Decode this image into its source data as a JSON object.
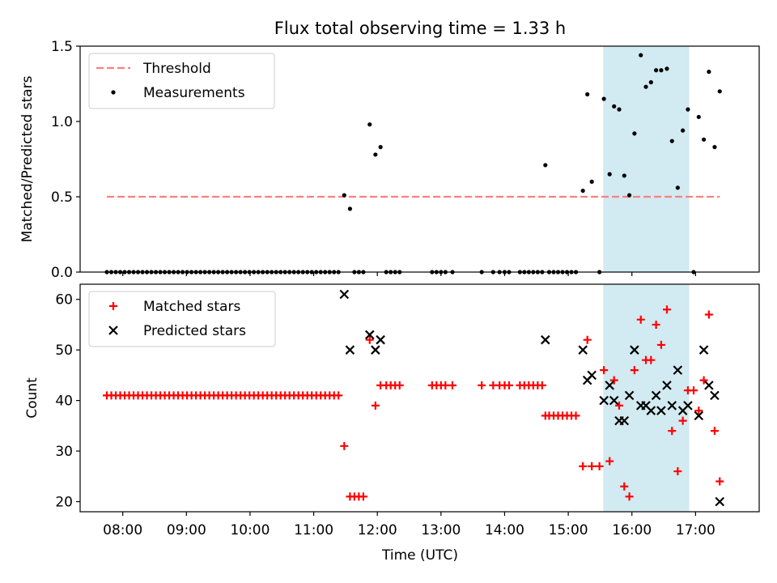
{
  "title": "Flux total observing time = 1.33 h",
  "chart_data": [
    {
      "type": "scatter",
      "ylabel": "Matched/Predicted stars",
      "ylim": [
        0,
        1.5
      ],
      "yticks": [
        "0.0",
        "0.5",
        "1.0",
        "1.5"
      ],
      "xlim": [
        7.33,
        18.0
      ],
      "grid": false,
      "legend": "top-left",
      "highlight_span": [
        15.55,
        16.9
      ],
      "threshold": {
        "name": "Threshold",
        "value": 0.5,
        "x": [
          7.75,
          17.38
        ],
        "color": "#ff7f7f"
      },
      "series": [
        {
          "name": "Measurements",
          "color": "#000000",
          "marker": "dot",
          "points": [
            [
              7.75,
              0
            ],
            [
              7.82,
              0
            ],
            [
              7.89,
              0
            ],
            [
              7.96,
              0
            ],
            [
              8.03,
              0
            ],
            [
              8.1,
              0
            ],
            [
              8.17,
              0
            ],
            [
              8.24,
              0
            ],
            [
              8.31,
              0
            ],
            [
              8.38,
              0
            ],
            [
              8.45,
              0
            ],
            [
              8.52,
              0
            ],
            [
              8.59,
              0
            ],
            [
              8.66,
              0
            ],
            [
              8.73,
              0
            ],
            [
              8.8,
              0
            ],
            [
              8.87,
              0
            ],
            [
              8.94,
              0
            ],
            [
              9.01,
              0
            ],
            [
              9.08,
              0
            ],
            [
              9.15,
              0
            ],
            [
              9.22,
              0
            ],
            [
              9.29,
              0
            ],
            [
              9.36,
              0
            ],
            [
              9.43,
              0
            ],
            [
              9.5,
              0
            ],
            [
              9.57,
              0
            ],
            [
              9.64,
              0
            ],
            [
              9.71,
              0
            ],
            [
              9.78,
              0
            ],
            [
              9.85,
              0
            ],
            [
              9.92,
              0
            ],
            [
              9.99,
              0
            ],
            [
              10.06,
              0
            ],
            [
              10.13,
              0
            ],
            [
              10.2,
              0
            ],
            [
              10.27,
              0
            ],
            [
              10.34,
              0
            ],
            [
              10.41,
              0
            ],
            [
              10.48,
              0
            ],
            [
              10.55,
              0
            ],
            [
              10.62,
              0
            ],
            [
              10.69,
              0
            ],
            [
              10.76,
              0
            ],
            [
              10.83,
              0
            ],
            [
              10.9,
              0
            ],
            [
              10.97,
              0
            ],
            [
              11.04,
              0
            ],
            [
              11.11,
              0
            ],
            [
              11.18,
              0
            ],
            [
              11.25,
              0
            ],
            [
              11.32,
              0
            ],
            [
              11.39,
              0
            ],
            [
              11.48,
              0.51
            ],
            [
              11.57,
              0.42
            ],
            [
              11.64,
              0
            ],
            [
              11.71,
              0
            ],
            [
              11.78,
              0
            ],
            [
              11.88,
              0.98
            ],
            [
              11.97,
              0.78
            ],
            [
              12.05,
              0.83
            ],
            [
              12.14,
              0
            ],
            [
              12.21,
              0
            ],
            [
              12.28,
              0
            ],
            [
              12.35,
              0
            ],
            [
              12.86,
              0
            ],
            [
              12.93,
              0
            ],
            [
              13.0,
              0
            ],
            [
              13.07,
              0
            ],
            [
              13.18,
              0
            ],
            [
              13.64,
              0
            ],
            [
              13.82,
              0
            ],
            [
              13.92,
              0
            ],
            [
              14.0,
              0
            ],
            [
              14.07,
              0
            ],
            [
              14.24,
              0
            ],
            [
              14.31,
              0
            ],
            [
              14.38,
              0
            ],
            [
              14.45,
              0
            ],
            [
              14.52,
              0
            ],
            [
              14.59,
              0
            ],
            [
              14.64,
              0.71
            ],
            [
              14.7,
              0
            ],
            [
              14.77,
              0
            ],
            [
              14.84,
              0
            ],
            [
              14.91,
              0
            ],
            [
              14.98,
              0
            ],
            [
              15.05,
              0
            ],
            [
              15.12,
              0
            ],
            [
              15.23,
              0.54
            ],
            [
              15.3,
              1.18
            ],
            [
              15.37,
              0.6
            ],
            [
              15.49,
              0
            ],
            [
              15.56,
              1.15
            ],
            [
              15.65,
              0.65
            ],
            [
              15.72,
              1.1
            ],
            [
              15.8,
              1.08
            ],
            [
              15.88,
              0.64
            ],
            [
              15.96,
              0.51
            ],
            [
              16.04,
              0.92
            ],
            [
              16.14,
              1.44
            ],
            [
              16.22,
              1.23
            ],
            [
              16.3,
              1.26
            ],
            [
              16.38,
              1.34
            ],
            [
              16.46,
              1.34
            ],
            [
              16.55,
              1.35
            ],
            [
              16.63,
              0.87
            ],
            [
              16.72,
              0.56
            ],
            [
              16.8,
              0.94
            ],
            [
              16.88,
              1.08
            ],
            [
              16.97,
              0
            ],
            [
              17.05,
              1.03
            ],
            [
              17.13,
              0.88
            ],
            [
              17.21,
              1.33
            ],
            [
              17.3,
              0.83
            ],
            [
              17.38,
              1.2
            ]
          ]
        }
      ]
    },
    {
      "type": "scatter",
      "xlabel": "Time (UTC)",
      "ylabel": "Count",
      "ylim": [
        18,
        63
      ],
      "yticks": [
        "20",
        "30",
        "40",
        "50",
        "60"
      ],
      "xlim": [
        7.33,
        18.0
      ],
      "xticks": [
        "08:00",
        "09:00",
        "10:00",
        "11:00",
        "12:00",
        "13:00",
        "14:00",
        "15:00",
        "16:00",
        "17:00"
      ],
      "grid": false,
      "legend": "top-left",
      "highlight_span": [
        15.55,
        16.9
      ],
      "series": [
        {
          "name": "Matched stars",
          "color": "#ff0000",
          "marker": "plus",
          "points": [
            [
              7.75,
              41
            ],
            [
              7.82,
              41
            ],
            [
              7.89,
              41
            ],
            [
              7.96,
              41
            ],
            [
              8.03,
              41
            ],
            [
              8.1,
              41
            ],
            [
              8.17,
              41
            ],
            [
              8.24,
              41
            ],
            [
              8.31,
              41
            ],
            [
              8.38,
              41
            ],
            [
              8.45,
              41
            ],
            [
              8.52,
              41
            ],
            [
              8.59,
              41
            ],
            [
              8.66,
              41
            ],
            [
              8.73,
              41
            ],
            [
              8.8,
              41
            ],
            [
              8.87,
              41
            ],
            [
              8.94,
              41
            ],
            [
              9.01,
              41
            ],
            [
              9.08,
              41
            ],
            [
              9.15,
              41
            ],
            [
              9.22,
              41
            ],
            [
              9.29,
              41
            ],
            [
              9.36,
              41
            ],
            [
              9.43,
              41
            ],
            [
              9.5,
              41
            ],
            [
              9.57,
              41
            ],
            [
              9.64,
              41
            ],
            [
              9.71,
              41
            ],
            [
              9.78,
              41
            ],
            [
              9.85,
              41
            ],
            [
              9.92,
              41
            ],
            [
              9.99,
              41
            ],
            [
              10.06,
              41
            ],
            [
              10.13,
              41
            ],
            [
              10.2,
              41
            ],
            [
              10.27,
              41
            ],
            [
              10.34,
              41
            ],
            [
              10.41,
              41
            ],
            [
              10.48,
              41
            ],
            [
              10.55,
              41
            ],
            [
              10.62,
              41
            ],
            [
              10.69,
              41
            ],
            [
              10.76,
              41
            ],
            [
              10.83,
              41
            ],
            [
              10.9,
              41
            ],
            [
              10.97,
              41
            ],
            [
              11.04,
              41
            ],
            [
              11.11,
              41
            ],
            [
              11.18,
              41
            ],
            [
              11.25,
              41
            ],
            [
              11.32,
              41
            ],
            [
              11.39,
              41
            ],
            [
              11.48,
              31
            ],
            [
              11.57,
              21
            ],
            [
              11.64,
              21
            ],
            [
              11.71,
              21
            ],
            [
              11.78,
              21
            ],
            [
              11.88,
              52
            ],
            [
              11.97,
              39
            ],
            [
              12.05,
              43
            ],
            [
              12.14,
              43
            ],
            [
              12.21,
              43
            ],
            [
              12.28,
              43
            ],
            [
              12.35,
              43
            ],
            [
              12.86,
              43
            ],
            [
              12.93,
              43
            ],
            [
              13.0,
              43
            ],
            [
              13.07,
              43
            ],
            [
              13.18,
              43
            ],
            [
              13.64,
              43
            ],
            [
              13.82,
              43
            ],
            [
              13.92,
              43
            ],
            [
              14.0,
              43
            ],
            [
              14.07,
              43
            ],
            [
              14.24,
              43
            ],
            [
              14.31,
              43
            ],
            [
              14.38,
              43
            ],
            [
              14.45,
              43
            ],
            [
              14.52,
              43
            ],
            [
              14.59,
              43
            ],
            [
              14.64,
              37
            ],
            [
              14.7,
              37
            ],
            [
              14.77,
              37
            ],
            [
              14.84,
              37
            ],
            [
              14.91,
              37
            ],
            [
              14.98,
              37
            ],
            [
              15.05,
              37
            ],
            [
              15.12,
              37
            ],
            [
              15.23,
              27
            ],
            [
              15.3,
              52
            ],
            [
              15.37,
              27
            ],
            [
              15.49,
              27
            ],
            [
              15.56,
              46
            ],
            [
              15.65,
              28
            ],
            [
              15.72,
              44
            ],
            [
              15.8,
              39
            ],
            [
              15.88,
              23
            ],
            [
              15.96,
              21
            ],
            [
              16.04,
              46
            ],
            [
              16.14,
              56
            ],
            [
              16.22,
              48
            ],
            [
              16.3,
              48
            ],
            [
              16.38,
              55
            ],
            [
              16.46,
              51
            ],
            [
              16.55,
              58
            ],
            [
              16.63,
              34
            ],
            [
              16.72,
              26
            ],
            [
              16.8,
              36
            ],
            [
              16.88,
              42
            ],
            [
              16.97,
              42
            ],
            [
              17.05,
              38
            ],
            [
              17.13,
              44
            ],
            [
              17.21,
              57
            ],
            [
              17.3,
              34
            ],
            [
              17.38,
              24
            ]
          ]
        },
        {
          "name": "Predicted stars",
          "color": "#000000",
          "marker": "x",
          "points": [
            [
              11.48,
              61
            ],
            [
              11.57,
              50
            ],
            [
              11.88,
              53
            ],
            [
              11.97,
              50
            ],
            [
              12.05,
              52
            ],
            [
              14.64,
              52
            ],
            [
              15.23,
              50
            ],
            [
              15.3,
              44
            ],
            [
              15.37,
              45
            ],
            [
              15.56,
              40
            ],
            [
              15.65,
              43
            ],
            [
              15.72,
              40
            ],
            [
              15.8,
              36
            ],
            [
              15.88,
              36
            ],
            [
              15.96,
              41
            ],
            [
              16.04,
              50
            ],
            [
              16.14,
              39
            ],
            [
              16.22,
              39
            ],
            [
              16.3,
              38
            ],
            [
              16.38,
              41
            ],
            [
              16.46,
              38
            ],
            [
              16.55,
              43
            ],
            [
              16.63,
              39
            ],
            [
              16.72,
              46
            ],
            [
              16.8,
              38
            ],
            [
              16.88,
              39
            ],
            [
              17.05,
              37
            ],
            [
              17.13,
              50
            ],
            [
              17.21,
              43
            ],
            [
              17.3,
              41
            ],
            [
              17.38,
              20
            ]
          ]
        }
      ]
    }
  ]
}
